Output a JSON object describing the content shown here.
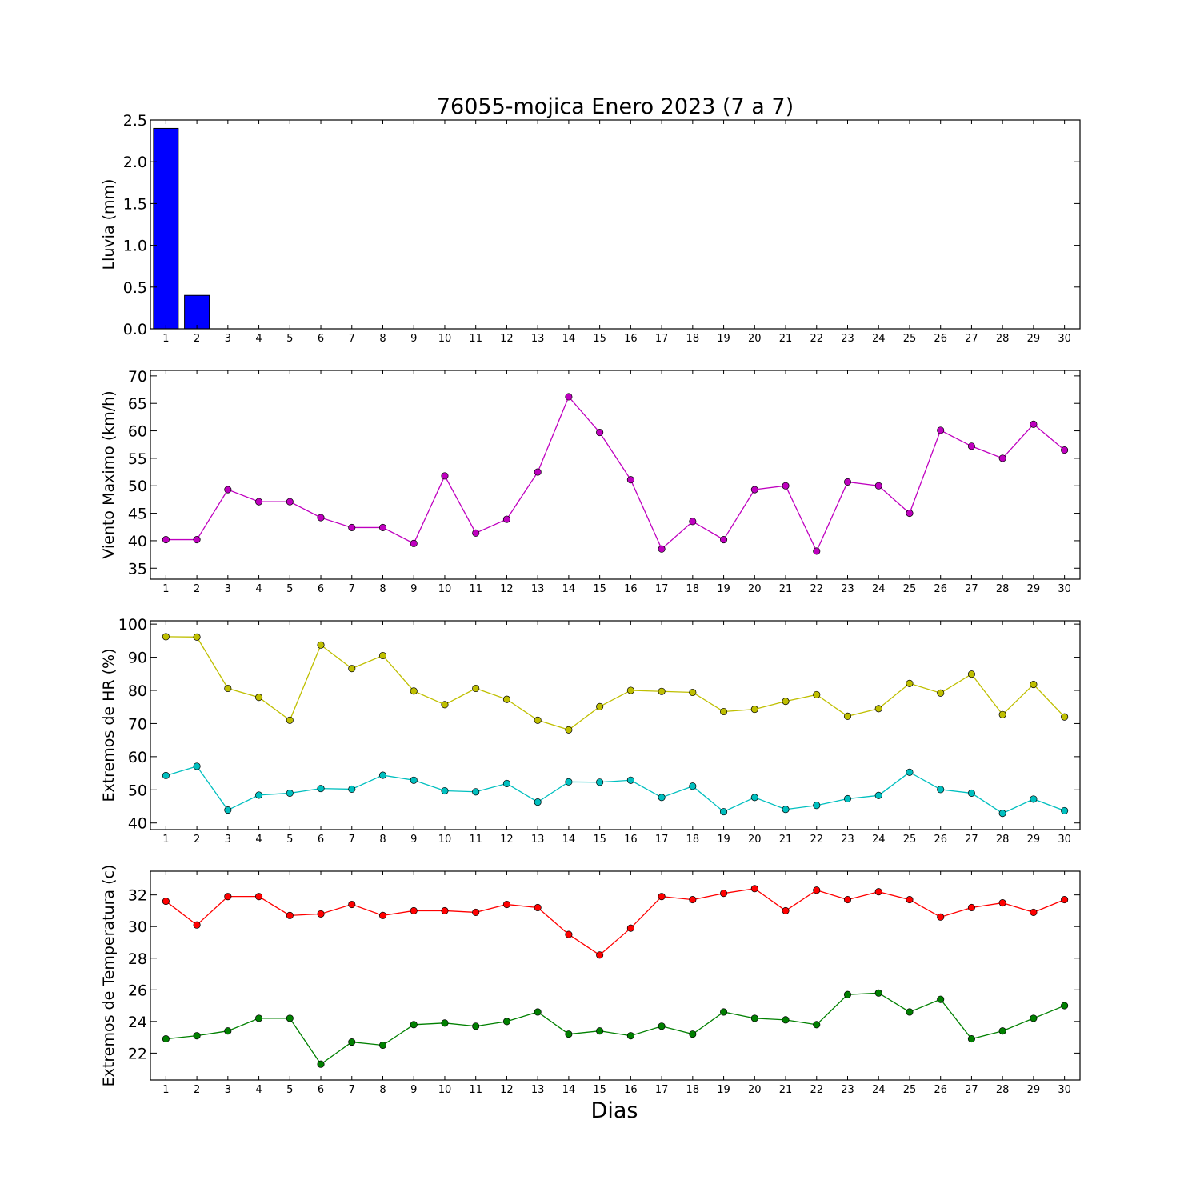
{
  "figure": {
    "title": "76055-mojica Enero 2023  (7 a 7)",
    "xlabel": "Dias"
  },
  "chart_data": [
    {
      "type": "bar",
      "ylabel": "Lluvia (mm)",
      "categories": [
        1,
        2,
        3,
        4,
        5,
        6,
        7,
        8,
        9,
        10,
        11,
        12,
        13,
        14,
        15,
        16,
        17,
        18,
        19,
        20,
        21,
        22,
        23,
        24,
        25,
        26,
        27,
        28,
        29,
        30
      ],
      "ylim": [
        0,
        2.5
      ],
      "yticks": [
        0.0,
        0.5,
        1.0,
        1.5,
        2.0,
        2.5
      ],
      "ytick_labels": [
        "0.0",
        "0.5",
        "1.0",
        "1.5",
        "2.0",
        "2.5"
      ],
      "series": [
        {
          "color": "#0000ff",
          "values": [
            2.4,
            0.4,
            0,
            0,
            0,
            0,
            0,
            0,
            0,
            0,
            0,
            0,
            0,
            0,
            0,
            0,
            0,
            0,
            0,
            0,
            0,
            0,
            0,
            0,
            0,
            0,
            0,
            0,
            0,
            0
          ]
        }
      ]
    },
    {
      "type": "line",
      "ylabel": "Viento Maximo (km/h)",
      "x": [
        1,
        2,
        3,
        4,
        5,
        6,
        7,
        8,
        9,
        10,
        11,
        12,
        13,
        14,
        15,
        16,
        17,
        18,
        19,
        20,
        21,
        22,
        23,
        24,
        25,
        26,
        27,
        28,
        29,
        30
      ],
      "ylim": [
        33,
        71
      ],
      "yticks": [
        35,
        40,
        45,
        50,
        55,
        60,
        65,
        70
      ],
      "ytick_labels": [
        "35",
        "40",
        "45",
        "50",
        "55",
        "60",
        "65",
        "70"
      ],
      "series": [
        {
          "color": "#bf00bf",
          "values": [
            40.2,
            40.2,
            49.3,
            47.1,
            47.1,
            44.2,
            42.4,
            42.4,
            39.5,
            51.8,
            41.4,
            43.9,
            52.5,
            66.2,
            59.7,
            51.1,
            38.5,
            43.5,
            40.2,
            49.3,
            50.0,
            38.1,
            50.7,
            50.0,
            45.0,
            60.1,
            57.2,
            55.0,
            61.2,
            56.5
          ]
        }
      ]
    },
    {
      "type": "line",
      "ylabel": "Extremos de HR (%)",
      "x": [
        1,
        2,
        3,
        4,
        5,
        6,
        7,
        8,
        9,
        10,
        11,
        12,
        13,
        14,
        15,
        16,
        17,
        18,
        19,
        20,
        21,
        22,
        23,
        24,
        25,
        26,
        27,
        28,
        29,
        30
      ],
      "ylim": [
        38,
        101
      ],
      "yticks": [
        40,
        50,
        60,
        70,
        80,
        90,
        100
      ],
      "ytick_labels": [
        "40",
        "50",
        "60",
        "70",
        "80",
        "90",
        "100"
      ],
      "series": [
        {
          "color": "#bfbf00",
          "values": [
            96.2,
            96.1,
            80.6,
            77.9,
            71.0,
            93.7,
            86.6,
            90.5,
            79.8,
            75.7,
            80.6,
            77.3,
            71.0,
            68.1,
            75.1,
            80.0,
            79.7,
            79.4,
            73.6,
            74.3,
            76.7,
            78.7,
            72.2,
            74.5,
            82.1,
            79.2,
            84.9,
            72.7,
            81.8,
            72.0
          ]
        },
        {
          "color": "#00bfbf",
          "values": [
            54.3,
            57.1,
            43.9,
            48.4,
            49.0,
            50.4,
            50.2,
            54.4,
            52.9,
            49.7,
            49.4,
            51.9,
            46.3,
            52.4,
            52.3,
            52.9,
            47.7,
            51.1,
            43.4,
            47.7,
            44.1,
            45.3,
            47.3,
            48.3,
            55.3,
            50.1,
            49.0,
            42.9,
            47.2,
            43.7
          ]
        }
      ]
    },
    {
      "type": "line",
      "ylabel": "Extremos de Temperatura (c)",
      "x": [
        1,
        2,
        3,
        4,
        5,
        6,
        7,
        8,
        9,
        10,
        11,
        12,
        13,
        14,
        15,
        16,
        17,
        18,
        19,
        20,
        21,
        22,
        23,
        24,
        25,
        26,
        27,
        28,
        29,
        30
      ],
      "ylim": [
        20.3,
        33.5
      ],
      "yticks": [
        22,
        24,
        26,
        28,
        30,
        32
      ],
      "ytick_labels": [
        "22",
        "24",
        "26",
        "28",
        "30",
        "32"
      ],
      "series": [
        {
          "color": "#ff0000",
          "values": [
            31.6,
            30.1,
            31.9,
            31.9,
            30.7,
            30.8,
            31.4,
            30.7,
            31.0,
            31.0,
            30.9,
            31.4,
            31.2,
            29.5,
            28.2,
            29.9,
            31.9,
            31.7,
            32.1,
            32.4,
            31.0,
            32.3,
            31.7,
            32.2,
            31.7,
            30.6,
            31.2,
            31.5,
            30.9,
            31.7
          ]
        },
        {
          "color": "#008000",
          "values": [
            22.9,
            23.1,
            23.4,
            24.2,
            24.2,
            21.3,
            22.7,
            22.5,
            23.8,
            23.9,
            23.7,
            24.0,
            24.6,
            23.2,
            23.4,
            23.1,
            23.7,
            23.2,
            24.6,
            24.2,
            24.1,
            23.8,
            25.7,
            25.8,
            24.6,
            25.4,
            22.9,
            23.4,
            24.2,
            25.0
          ]
        }
      ]
    }
  ]
}
